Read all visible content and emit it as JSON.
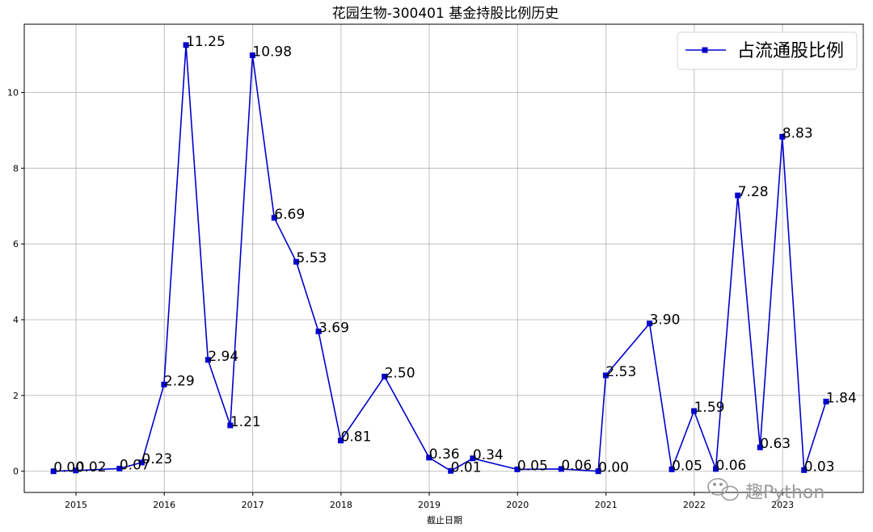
{
  "chart_data": {
    "type": "line",
    "title": "花园生物-300401 基金持股比例历史",
    "xlabel": "截止日期",
    "ylabel": "",
    "x_tick_labels": [
      "2015",
      "2016",
      "2017",
      "2018",
      "2019",
      "2020",
      "2021",
      "2022",
      "2023"
    ],
    "y_ticks": [
      0,
      2,
      4,
      6,
      8,
      10
    ],
    "xlim": [
      "2014-06-01",
      "2023-12-01"
    ],
    "ylim": [
      -0.56,
      11.8
    ],
    "grid": true,
    "legend_position": "top-right",
    "line_color": "#0000cd",
    "marker": "square",
    "series": [
      {
        "name": "占流通股比例",
        "x": [
          "2014-09-30",
          "2014-12-31",
          "2015-06-30",
          "2015-09-30",
          "2015-12-31",
          "2016-03-31",
          "2016-06-30",
          "2016-09-30",
          "2016-12-31",
          "2017-03-31",
          "2017-06-30",
          "2017-09-30",
          "2017-12-31",
          "2018-06-30",
          "2018-12-31",
          "2019-03-31",
          "2019-06-30",
          "2019-12-31",
          "2020-06-30",
          "2020-11-30",
          "2020-12-31",
          "2021-06-30",
          "2021-09-30",
          "2021-12-31",
          "2022-03-31",
          "2022-06-30",
          "2022-09-30",
          "2022-12-31",
          "2023-03-31",
          "2023-06-30"
        ],
        "values": [
          0.0,
          0.02,
          0.07,
          0.23,
          2.29,
          11.25,
          2.94,
          1.21,
          10.98,
          6.69,
          5.53,
          3.69,
          0.81,
          2.5,
          0.36,
          0.01,
          0.34,
          0.05,
          0.06,
          0.0,
          2.53,
          3.9,
          0.05,
          1.59,
          0.06,
          7.28,
          0.63,
          8.83,
          0.03,
          1.84
        ],
        "data_labels": [
          "0.00",
          "0.02",
          "0.07",
          "0.23",
          "2.29",
          "11.25",
          "2.94",
          "1.21",
          "10.98",
          "6.69",
          "5.53",
          "3.69",
          "0.81",
          "2.50",
          "0.36",
          "0.01",
          "0.34",
          "0.05",
          "0.06",
          "0.00",
          "2.53",
          "3.90",
          "0.05",
          "1.59",
          "0.06",
          "7.28",
          "0.63",
          "8.83",
          "0.03",
          "1.84"
        ]
      }
    ]
  },
  "watermark": {
    "text": "趣Python",
    "icon": "wechat-icon"
  }
}
